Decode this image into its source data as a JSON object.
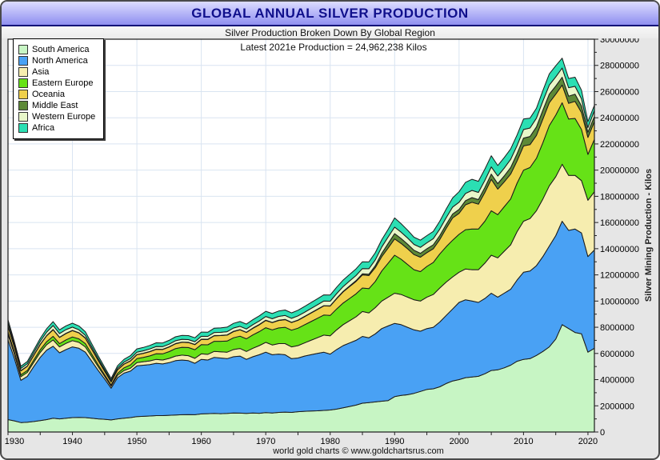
{
  "title": "GLOBAL ANNUAL SILVER PRODUCTION",
  "subtitle": "Silver Production Broken Down By Global Region",
  "annotation": "Latest 2021e Production = 24,962,238 Kilos",
  "footer": "world gold charts © www.goldchartsrus.com",
  "colors": {
    "titlebar_top": "#dcdcff",
    "titlebar_bottom": "#8f8ff0",
    "title_text": "#10108c",
    "window_bg": "#e6e6e6",
    "plot_bg": "#ffffff",
    "gridline": "#d9e4f1",
    "outline": "#1a1a1a"
  },
  "chart_data": {
    "type": "area",
    "stacked": true,
    "title": "GLOBAL ANNUAL SILVER PRODUCTION",
    "subtitle": "Silver Production Broken Down By Global Region",
    "latest_value_kilos": 24962238,
    "latest_year": "2021e",
    "x_start": 1930,
    "x_end": 2021,
    "xticks": [
      1930,
      1940,
      1950,
      1960,
      1970,
      1980,
      1990,
      2000,
      2010,
      2020
    ],
    "xtick_minor_step": 5,
    "ylabel": "Silver Mining Production - Kilos",
    "ylim": [
      0,
      30000000
    ],
    "yticks": [
      0,
      2000000,
      4000000,
      6000000,
      8000000,
      10000000,
      12000000,
      14000000,
      16000000,
      18000000,
      20000000,
      22000000,
      24000000,
      26000000,
      28000000,
      30000000
    ],
    "grid": true,
    "legend_position": "top-left",
    "value_unit": "million kilos",
    "value_multiplier": 1000000,
    "series": [
      {
        "key": "south_america",
        "label": "South America",
        "color": "#c7f5c4",
        "values": [
          0.95,
          0.85,
          0.72,
          0.75,
          0.8,
          0.87,
          0.95,
          1.05,
          1.0,
          1.05,
          1.1,
          1.12,
          1.1,
          1.05,
          1.0,
          0.97,
          0.92,
          1.0,
          1.05,
          1.1,
          1.18,
          1.2,
          1.22,
          1.25,
          1.25,
          1.28,
          1.3,
          1.32,
          1.33,
          1.32,
          1.38,
          1.4,
          1.42,
          1.4,
          1.42,
          1.45,
          1.44,
          1.42,
          1.45,
          1.43,
          1.48,
          1.45,
          1.5,
          1.52,
          1.5,
          1.55,
          1.58,
          1.6,
          1.62,
          1.65,
          1.68,
          1.75,
          1.85,
          1.95,
          2.05,
          2.2,
          2.25,
          2.3,
          2.35,
          2.4,
          2.7,
          2.8,
          2.85,
          2.95,
          3.1,
          3.25,
          3.3,
          3.45,
          3.7,
          3.9,
          4.0,
          4.15,
          4.2,
          4.25,
          4.45,
          4.7,
          4.75,
          4.9,
          5.1,
          5.4,
          5.55,
          5.6,
          5.85,
          6.15,
          6.5,
          7.1,
          8.2,
          7.9,
          7.6,
          7.5,
          6.1,
          6.4
        ]
      },
      {
        "key": "north_america",
        "label": "North America",
        "color": "#49a1f4",
        "values": [
          6.1,
          4.75,
          3.23,
          3.5,
          4.2,
          4.83,
          5.3,
          5.5,
          5.05,
          5.25,
          5.4,
          5.28,
          5.0,
          4.35,
          3.7,
          3.08,
          2.43,
          3.15,
          3.45,
          3.55,
          3.87,
          3.9,
          3.93,
          4.0,
          3.95,
          4.02,
          4.15,
          4.18,
          4.12,
          3.93,
          4.17,
          4.1,
          4.28,
          4.25,
          4.18,
          4.3,
          4.36,
          4.13,
          4.3,
          4.47,
          4.62,
          4.45,
          4.45,
          4.38,
          4.1,
          4.1,
          4.22,
          4.3,
          4.38,
          4.45,
          4.27,
          4.55,
          4.75,
          4.85,
          4.95,
          5.1,
          4.95,
          5.2,
          5.55,
          5.7,
          5.6,
          5.4,
          5.15,
          4.85,
          4.6,
          4.65,
          4.7,
          4.95,
          5.2,
          5.5,
          5.9,
          5.95,
          5.8,
          5.65,
          5.75,
          5.9,
          5.55,
          5.7,
          5.8,
          6.2,
          6.65,
          6.7,
          6.85,
          7.25,
          7.7,
          7.9,
          7.9,
          7.5,
          7.9,
          7.7,
          7.3,
          7.5
        ]
      },
      {
        "key": "asia",
        "label": "Asia",
        "color": "#f6edaf",
        "values": [
          0.4,
          0.33,
          0.28,
          0.3,
          0.33,
          0.38,
          0.42,
          0.48,
          0.45,
          0.47,
          0.48,
          0.45,
          0.4,
          0.35,
          0.28,
          0.2,
          0.15,
          0.18,
          0.2,
          0.22,
          0.25,
          0.27,
          0.28,
          0.3,
          0.3,
          0.32,
          0.35,
          0.37,
          0.38,
          0.38,
          0.42,
          0.43,
          0.46,
          0.48,
          0.5,
          0.55,
          0.58,
          0.6,
          0.65,
          0.7,
          0.75,
          0.75,
          0.8,
          0.85,
          0.9,
          0.95,
          1.0,
          1.1,
          1.2,
          1.3,
          1.4,
          1.5,
          1.6,
          1.7,
          1.8,
          1.9,
          1.9,
          2.0,
          2.1,
          2.2,
          2.3,
          2.3,
          2.3,
          2.3,
          2.3,
          2.4,
          2.5,
          2.6,
          2.55,
          2.45,
          2.3,
          2.35,
          2.4,
          2.5,
          2.7,
          2.9,
          3.0,
          3.2,
          3.4,
          3.7,
          3.9,
          4.0,
          4.2,
          4.4,
          4.6,
          4.5,
          4.35,
          4.2,
          4.1,
          4.0,
          4.3,
          4.45
        ]
      },
      {
        "key": "eastern_europe",
        "label": "Eastern Europe",
        "color": "#66e217",
        "values": [
          0.2,
          0.17,
          0.14,
          0.15,
          0.17,
          0.2,
          0.23,
          0.28,
          0.25,
          0.27,
          0.28,
          0.27,
          0.25,
          0.2,
          0.15,
          0.12,
          0.1,
          0.15,
          0.2,
          0.25,
          0.3,
          0.33,
          0.38,
          0.43,
          0.47,
          0.52,
          0.57,
          0.6,
          0.62,
          0.66,
          0.7,
          0.73,
          0.77,
          0.8,
          0.85,
          0.9,
          0.94,
          0.97,
          1.02,
          1.07,
          1.12,
          1.15,
          1.2,
          1.25,
          1.28,
          1.33,
          1.38,
          1.43,
          1.48,
          1.53,
          1.55,
          1.6,
          1.65,
          1.7,
          1.75,
          1.8,
          1.85,
          2.0,
          2.3,
          2.6,
          2.9,
          2.7,
          2.5,
          2.3,
          2.25,
          2.35,
          2.45,
          2.6,
          2.7,
          2.8,
          2.9,
          3.0,
          3.1,
          3.1,
          3.2,
          3.4,
          3.3,
          3.4,
          3.5,
          3.7,
          3.9,
          3.9,
          4.0,
          4.3,
          4.6,
          4.7,
          4.7,
          4.3,
          4.35,
          3.9,
          3.5,
          4.0
        ]
      },
      {
        "key": "oceania",
        "label": "Oceania",
        "color": "#efd04c",
        "values": [
          0.4,
          0.35,
          0.3,
          0.32,
          0.35,
          0.4,
          0.45,
          0.5,
          0.47,
          0.48,
          0.48,
          0.45,
          0.42,
          0.37,
          0.32,
          0.27,
          0.22,
          0.26,
          0.28,
          0.3,
          0.3,
          0.3,
          0.32,
          0.33,
          0.33,
          0.35,
          0.37,
          0.38,
          0.38,
          0.38,
          0.4,
          0.4,
          0.42,
          0.43,
          0.45,
          0.47,
          0.48,
          0.48,
          0.5,
          0.52,
          0.55,
          0.55,
          0.57,
          0.58,
          0.58,
          0.6,
          0.62,
          0.65,
          0.67,
          0.7,
          0.72,
          0.78,
          0.85,
          0.9,
          0.95,
          1.0,
          1.0,
          1.05,
          1.1,
          1.15,
          1.25,
          1.2,
          1.2,
          1.15,
          1.1,
          1.05,
          1.05,
          1.1,
          1.4,
          1.7,
          1.6,
          1.9,
          2.05,
          1.9,
          2.2,
          2.4,
          1.95,
          1.9,
          1.9,
          1.7,
          1.85,
          1.75,
          1.75,
          1.8,
          1.75,
          1.6,
          1.35,
          1.2,
          1.3,
          1.3,
          1.3,
          1.35
        ]
      },
      {
        "key": "middle_east",
        "label": "Middle East",
        "color": "#5d8937",
        "values": [
          0.02,
          0.02,
          0.02,
          0.02,
          0.02,
          0.02,
          0.02,
          0.02,
          0.02,
          0.02,
          0.02,
          0.02,
          0.02,
          0.02,
          0.02,
          0.02,
          0.02,
          0.02,
          0.02,
          0.02,
          0.02,
          0.02,
          0.02,
          0.02,
          0.02,
          0.02,
          0.02,
          0.02,
          0.02,
          0.02,
          0.02,
          0.02,
          0.02,
          0.02,
          0.02,
          0.02,
          0.02,
          0.02,
          0.02,
          0.02,
          0.02,
          0.02,
          0.02,
          0.02,
          0.02,
          0.02,
          0.02,
          0.02,
          0.02,
          0.02,
          0.02,
          0.03,
          0.04,
          0.05,
          0.06,
          0.08,
          0.1,
          0.15,
          0.25,
          0.35,
          0.4,
          0.38,
          0.35,
          0.33,
          0.3,
          0.3,
          0.3,
          0.3,
          0.3,
          0.3,
          0.3,
          0.32,
          0.35,
          0.35,
          0.38,
          0.4,
          0.42,
          0.45,
          0.5,
          0.55,
          0.6,
          0.62,
          0.65,
          0.68,
          0.65,
          0.62,
          0.6,
          0.55,
          0.55,
          0.5,
          0.4,
          0.4
        ]
      },
      {
        "key": "western_europe",
        "label": "Western Europe",
        "color": "#e8f7c9",
        "values": [
          0.25,
          0.2,
          0.17,
          0.18,
          0.2,
          0.23,
          0.26,
          0.3,
          0.28,
          0.28,
          0.25,
          0.22,
          0.2,
          0.17,
          0.14,
          0.12,
          0.1,
          0.12,
          0.14,
          0.16,
          0.18,
          0.18,
          0.19,
          0.2,
          0.2,
          0.2,
          0.21,
          0.21,
          0.21,
          0.21,
          0.22,
          0.22,
          0.23,
          0.23,
          0.24,
          0.25,
          0.25,
          0.25,
          0.26,
          0.27,
          0.28,
          0.28,
          0.29,
          0.3,
          0.3,
          0.32,
          0.32,
          0.33,
          0.34,
          0.35,
          0.35,
          0.36,
          0.37,
          0.38,
          0.39,
          0.4,
          0.42,
          0.45,
          0.48,
          0.5,
          0.5,
          0.48,
          0.47,
          0.45,
          0.45,
          0.45,
          0.47,
          0.5,
          0.52,
          0.53,
          0.55,
          0.55,
          0.55,
          0.55,
          0.55,
          0.55,
          0.58,
          0.6,
          0.62,
          0.63,
          0.65,
          0.65,
          0.67,
          0.7,
          0.7,
          0.7,
          0.7,
          0.65,
          0.6,
          0.55,
          0.35,
          0.45
        ]
      },
      {
        "key": "africa",
        "label": "Africa",
        "color": "#2bdfb3",
        "values": [
          0.25,
          0.2,
          0.16,
          0.17,
          0.19,
          0.22,
          0.26,
          0.3,
          0.28,
          0.29,
          0.3,
          0.29,
          0.27,
          0.23,
          0.2,
          0.17,
          0.15,
          0.18,
          0.21,
          0.23,
          0.25,
          0.26,
          0.27,
          0.28,
          0.28,
          0.29,
          0.3,
          0.3,
          0.3,
          0.3,
          0.32,
          0.32,
          0.33,
          0.34,
          0.35,
          0.36,
          0.37,
          0.37,
          0.38,
          0.39,
          0.4,
          0.4,
          0.41,
          0.42,
          0.42,
          0.43,
          0.44,
          0.45,
          0.46,
          0.47,
          0.47,
          0.48,
          0.49,
          0.5,
          0.51,
          0.52,
          0.52,
          0.54,
          0.56,
          0.58,
          0.7,
          0.65,
          0.6,
          0.55,
          0.55,
          0.55,
          0.55,
          0.6,
          0.65,
          0.7,
          0.8,
          0.85,
          0.85,
          0.85,
          0.85,
          0.85,
          0.8,
          0.8,
          0.8,
          0.8,
          0.8,
          0.75,
          0.75,
          0.8,
          0.85,
          0.85,
          0.75,
          0.7,
          0.7,
          0.65,
          0.45,
          0.41
        ]
      }
    ]
  }
}
